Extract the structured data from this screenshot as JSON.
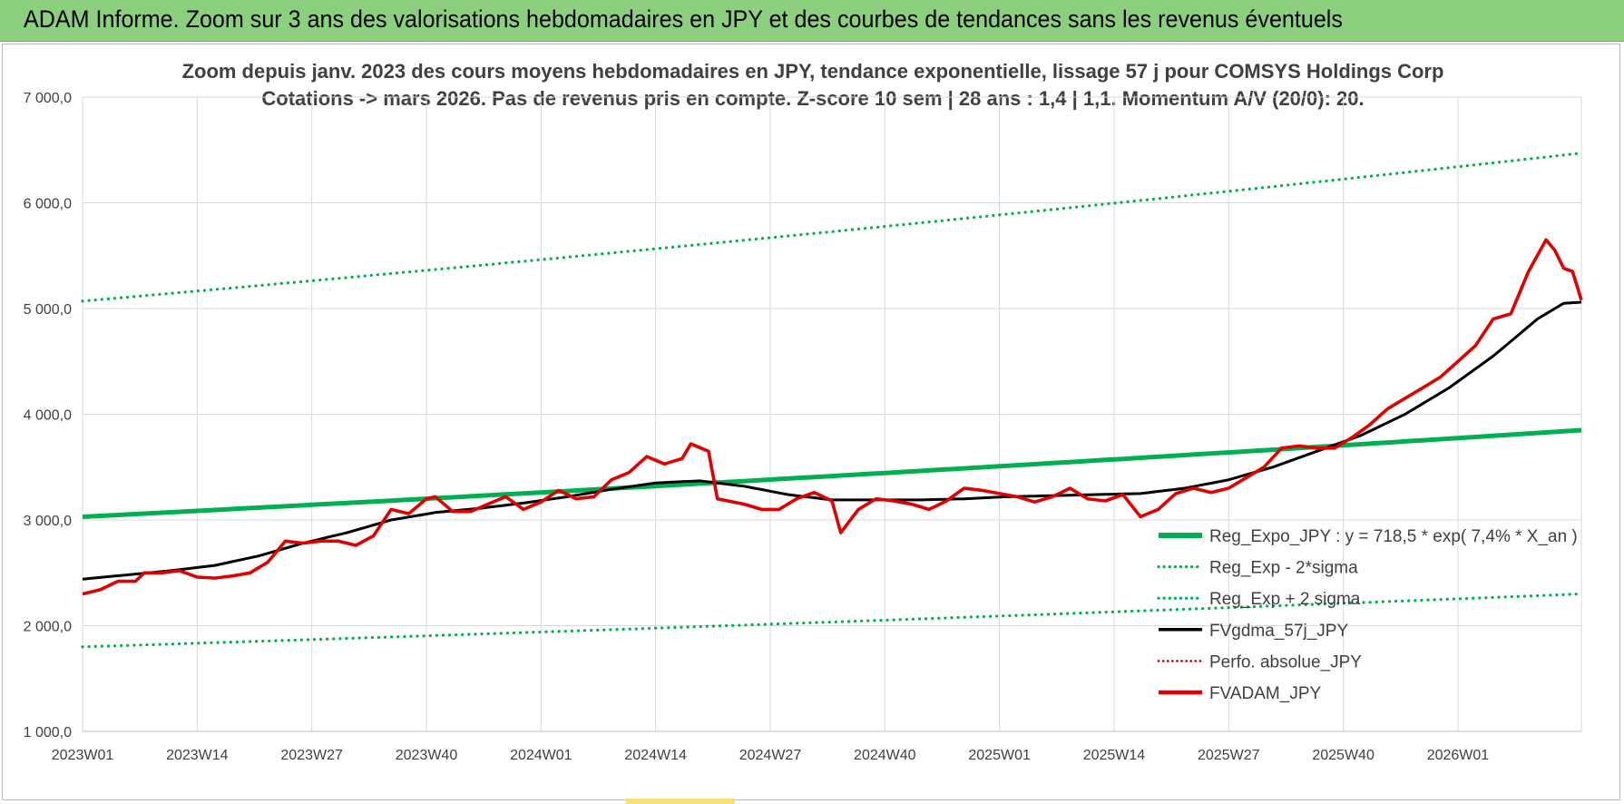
{
  "banner": {
    "title": "ADAM Informe. Zoom sur 3 ans des valorisations hebdomadaires en JPY et des courbes de tendances sans les revenus éventuels"
  },
  "colors": {
    "banner": "#8ccf7e",
    "reg": "#00b050",
    "band": "#00b050",
    "fvgdma": "#000000",
    "perfo": "#c00000",
    "fvadam": "#e00000",
    "grid": "#d9d9d9"
  },
  "chart_data": {
    "type": "line",
    "title_lines": [
      "Zoom depuis janv. 2023 des cours moyens hebdomadaires en JPY, tendance exponentielle, lissage 57 j pour COMSYS Holdings Corp",
      "Cotations -> mars 2026. Pas de revenus pris en compte. Z-score 10 sem | 28 ans : 1,4 | 1,1. Momentum A/V (20/0): 20."
    ],
    "ylim": [
      1000,
      7000
    ],
    "y_ticks": [
      "1 000,0",
      "2 000,0",
      "3 000,0",
      "4 000,0",
      "5 000,0",
      "6 000,0",
      "7 000,0"
    ],
    "y_tick_values": [
      1000,
      2000,
      3000,
      4000,
      5000,
      6000,
      7000
    ],
    "x_tick_labels": [
      "2023W01",
      "2023W14",
      "2023W27",
      "2023W40",
      "2024W01",
      "2024W14",
      "2024W27",
      "2024W40",
      "2025W01",
      "2025W14",
      "2025W27",
      "2025W40",
      "2026W01"
    ],
    "x_tick_index": [
      0,
      13,
      26,
      39,
      52,
      65,
      78,
      91,
      104,
      117,
      130,
      143,
      156
    ],
    "n_weeks": 171,
    "legend": [
      {
        "label": "Reg_Expo_JPY : y = 718,5 * exp( 7,4% *  X_an )",
        "style": "thick"
      },
      {
        "label": "Reg_Exp - 2*sigma",
        "style": "dotted-green"
      },
      {
        "label": "Reg_Exp + 2 sigma",
        "style": "dotted-green"
      },
      {
        "label": "FVgdma_57j_JPY",
        "style": "solid-black"
      },
      {
        "label": "Perfo. absolue_JPY",
        "style": "dotted-red"
      },
      {
        "label": "FVADAM_JPY",
        "style": "thick-red"
      }
    ],
    "series": [
      {
        "name": "Reg_Expo_JPY : y = 718,5 * exp( 7,4% *  X_an )",
        "anchors": [
          [
            0,
            3030
          ],
          [
            170,
            3850
          ]
        ]
      },
      {
        "name": "Reg_Exp - 2*sigma",
        "anchors": [
          [
            0,
            1800
          ],
          [
            170,
            2300
          ]
        ]
      },
      {
        "name": "Reg_Exp + 2 sigma",
        "anchors": [
          [
            0,
            5070
          ],
          [
            170,
            6470
          ]
        ]
      },
      {
        "name": "FVgdma_57j_JPY",
        "anchors": [
          [
            0,
            2440
          ],
          [
            5,
            2480
          ],
          [
            10,
            2520
          ],
          [
            15,
            2570
          ],
          [
            20,
            2660
          ],
          [
            25,
            2780
          ],
          [
            30,
            2880
          ],
          [
            35,
            3000
          ],
          [
            40,
            3070
          ],
          [
            45,
            3110
          ],
          [
            50,
            3160
          ],
          [
            55,
            3220
          ],
          [
            60,
            3290
          ],
          [
            65,
            3350
          ],
          [
            70,
            3370
          ],
          [
            75,
            3320
          ],
          [
            80,
            3240
          ],
          [
            85,
            3190
          ],
          [
            90,
            3190
          ],
          [
            95,
            3190
          ],
          [
            100,
            3200
          ],
          [
            105,
            3220
          ],
          [
            110,
            3230
          ],
          [
            115,
            3240
          ],
          [
            120,
            3250
          ],
          [
            125,
            3300
          ],
          [
            130,
            3380
          ],
          [
            135,
            3500
          ],
          [
            140,
            3650
          ],
          [
            145,
            3800
          ],
          [
            150,
            4000
          ],
          [
            155,
            4250
          ],
          [
            160,
            4550
          ],
          [
            165,
            4900
          ],
          [
            168,
            5050
          ],
          [
            170,
            5060
          ]
        ]
      },
      {
        "name": "FVADAM_JPY",
        "anchors": [
          [
            0,
            2300
          ],
          [
            2,
            2340
          ],
          [
            4,
            2420
          ],
          [
            6,
            2420
          ],
          [
            7,
            2500
          ],
          [
            9,
            2500
          ],
          [
            11,
            2520
          ],
          [
            13,
            2460
          ],
          [
            15,
            2450
          ],
          [
            17,
            2470
          ],
          [
            19,
            2500
          ],
          [
            21,
            2600
          ],
          [
            23,
            2800
          ],
          [
            25,
            2780
          ],
          [
            27,
            2800
          ],
          [
            29,
            2800
          ],
          [
            31,
            2760
          ],
          [
            33,
            2850
          ],
          [
            35,
            3100
          ],
          [
            37,
            3060
          ],
          [
            39,
            3200
          ],
          [
            40,
            3220
          ],
          [
            42,
            3080
          ],
          [
            44,
            3080
          ],
          [
            46,
            3150
          ],
          [
            48,
            3220
          ],
          [
            50,
            3100
          ],
          [
            52,
            3170
          ],
          [
            54,
            3280
          ],
          [
            56,
            3200
          ],
          [
            58,
            3220
          ],
          [
            60,
            3380
          ],
          [
            62,
            3450
          ],
          [
            64,
            3600
          ],
          [
            66,
            3530
          ],
          [
            68,
            3580
          ],
          [
            69,
            3720
          ],
          [
            71,
            3650
          ],
          [
            72,
            3200
          ],
          [
            75,
            3150
          ],
          [
            77,
            3100
          ],
          [
            79,
            3100
          ],
          [
            81,
            3200
          ],
          [
            83,
            3260
          ],
          [
            85,
            3180
          ],
          [
            86,
            2880
          ],
          [
            88,
            3100
          ],
          [
            90,
            3200
          ],
          [
            92,
            3180
          ],
          [
            94,
            3150
          ],
          [
            96,
            3100
          ],
          [
            98,
            3180
          ],
          [
            100,
            3300
          ],
          [
            102,
            3280
          ],
          [
            104,
            3250
          ],
          [
            106,
            3220
          ],
          [
            108,
            3170
          ],
          [
            110,
            3220
          ],
          [
            112,
            3300
          ],
          [
            114,
            3200
          ],
          [
            116,
            3180
          ],
          [
            118,
            3240
          ],
          [
            120,
            3030
          ],
          [
            122,
            3100
          ],
          [
            124,
            3250
          ],
          [
            126,
            3300
          ],
          [
            128,
            3260
          ],
          [
            130,
            3300
          ],
          [
            132,
            3400
          ],
          [
            134,
            3500
          ],
          [
            136,
            3680
          ],
          [
            138,
            3700
          ],
          [
            140,
            3680
          ],
          [
            142,
            3680
          ],
          [
            144,
            3780
          ],
          [
            146,
            3900
          ],
          [
            148,
            4050
          ],
          [
            150,
            4150
          ],
          [
            152,
            4250
          ],
          [
            154,
            4350
          ],
          [
            156,
            4500
          ],
          [
            158,
            4650
          ],
          [
            160,
            4900
          ],
          [
            162,
            4950
          ],
          [
            164,
            5350
          ],
          [
            166,
            5650
          ],
          [
            167,
            5550
          ],
          [
            168,
            5380
          ],
          [
            169,
            5350
          ],
          [
            170,
            5080
          ]
        ]
      }
    ],
    "grid": "horizontal-and-vertical",
    "legend_placement": "bottom-right"
  }
}
